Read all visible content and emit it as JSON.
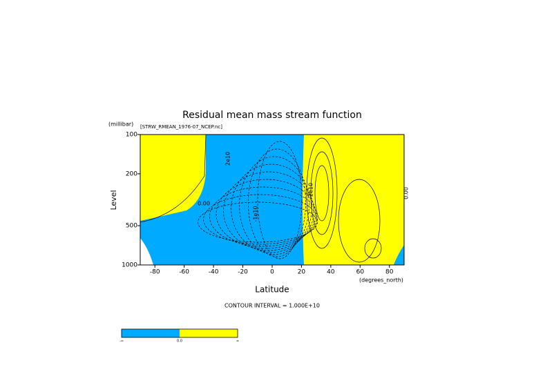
{
  "chart_data": {
    "type": "contour",
    "title": "Residual mean mass stream function",
    "subtitle": "[STRW_RMEAN_1976-07_NCEP.nc]",
    "x_label": "Latitude",
    "x_unit": "(degrees_north)",
    "y_label": "Level",
    "y_unit": "(millibar)",
    "xlim": [
      -90,
      90
    ],
    "xticks": [
      -80,
      -60,
      -40,
      -20,
      0,
      20,
      40,
      60,
      80
    ],
    "ylim": [
      1000,
      100
    ],
    "yticks": [
      100,
      200,
      500,
      1000
    ],
    "y_log": true,
    "contour_labels": [
      "0.00",
      "2e10",
      "-1e10",
      "2e10",
      "0.00"
    ],
    "note": "CONTOUR INTERVAL = 1.000E+10",
    "colorbar": {
      "colors": [
        "#00aaff",
        "#ffff00"
      ],
      "labels": [
        "-∞",
        "0.0",
        "∞"
      ]
    }
  }
}
